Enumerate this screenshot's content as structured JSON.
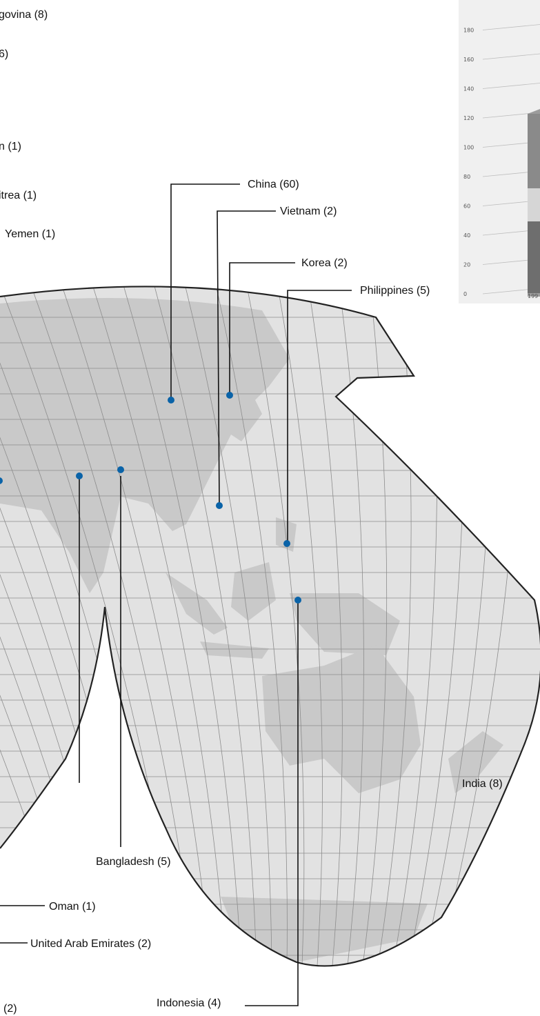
{
  "map": {
    "marker_color": "#0a63a8",
    "land_color": "#c9c9c9",
    "ocean_color": "#e2e2e2",
    "partial_labels": {
      "a": "govina (8)",
      "b": "6)",
      "c": "n (1)",
      "d": "itrea (1)",
      "e": "(2)"
    },
    "countries": [
      {
        "name": "Yemen",
        "count": 1,
        "label": "Yemen (1)"
      },
      {
        "name": "China",
        "count": 60,
        "label": "China (60)"
      },
      {
        "name": "Vietnam",
        "count": 2,
        "label": "Vietnam (2)"
      },
      {
        "name": "Korea",
        "count": 2,
        "label": "Korea (2)"
      },
      {
        "name": "Philippines",
        "count": 5,
        "label": "Philippines (5)"
      },
      {
        "name": "India",
        "count": 8,
        "label": "India (8)"
      },
      {
        "name": "Bangladesh",
        "count": 5,
        "label": "Bangladesh (5)"
      },
      {
        "name": "Oman",
        "count": 1,
        "label": "Oman (1)"
      },
      {
        "name": "United Arab Emirates",
        "count": 2,
        "label": "United Arab Emirates (2)"
      },
      {
        "name": "Indonesia",
        "count": 4,
        "label": "Indonesia (4)"
      }
    ]
  },
  "inset_chart": {
    "yticks": [
      "0",
      "20",
      "40",
      "60",
      "80",
      "100",
      "120",
      "140",
      "160",
      "180"
    ],
    "xtick": "199"
  }
}
